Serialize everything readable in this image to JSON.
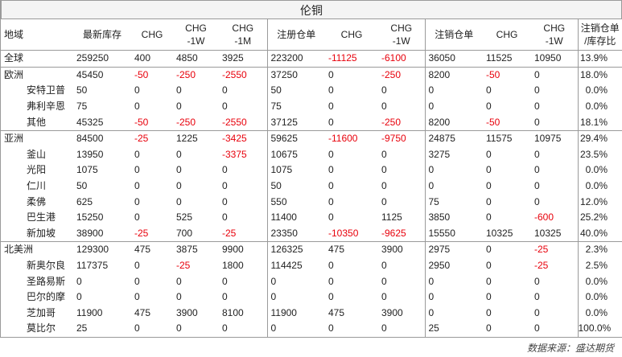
{
  "title": "伦铜",
  "headers": [
    "地域",
    "最新库存",
    "CHG",
    "CHG\n-1W",
    "CHG\n-1M",
    "注册仓单",
    "CHG",
    "CHG\n-1W",
    "注销仓单",
    "CHG",
    "CHG\n-1W",
    "注销仓单\n/库存比"
  ],
  "rows": [
    {
      "region": "全球",
      "sub": false,
      "group_start": true,
      "cells": [
        "259250",
        "400",
        "4850",
        "3925",
        "223200",
        "-11125",
        "-6100",
        "36050",
        "11525",
        "10950",
        "13.9%"
      ]
    },
    {
      "region": "欧洲",
      "sub": false,
      "group_start": true,
      "cells": [
        "45450",
        "-50",
        "-250",
        "-2550",
        "37250",
        "0",
        "-250",
        "8200",
        "-50",
        "0",
        "18.0%"
      ]
    },
    {
      "region": "安特卫普",
      "sub": true,
      "group_start": false,
      "cells": [
        "50",
        "0",
        "0",
        "0",
        "50",
        "0",
        "0",
        "0",
        "0",
        "0",
        "0.0%"
      ]
    },
    {
      "region": "弗利辛恩",
      "sub": true,
      "group_start": false,
      "cells": [
        "75",
        "0",
        "0",
        "0",
        "75",
        "0",
        "0",
        "0",
        "0",
        "0",
        "0.0%"
      ]
    },
    {
      "region": "其他",
      "sub": true,
      "group_start": false,
      "cells": [
        "45325",
        "-50",
        "-250",
        "-2550",
        "37125",
        "0",
        "-250",
        "8200",
        "-50",
        "0",
        "18.1%"
      ]
    },
    {
      "region": "亚洲",
      "sub": false,
      "group_start": true,
      "cells": [
        "84500",
        "-25",
        "1225",
        "-3425",
        "59625",
        "-11600",
        "-9750",
        "24875",
        "11575",
        "10975",
        "29.4%"
      ]
    },
    {
      "region": "釜山",
      "sub": true,
      "group_start": false,
      "cells": [
        "13950",
        "0",
        "0",
        "-3375",
        "10675",
        "0",
        "0",
        "3275",
        "0",
        "0",
        "23.5%"
      ]
    },
    {
      "region": "光阳",
      "sub": true,
      "group_start": false,
      "cells": [
        "1075",
        "0",
        "0",
        "0",
        "1075",
        "0",
        "0",
        "0",
        "0",
        "0",
        "0.0%"
      ]
    },
    {
      "region": "仁川",
      "sub": true,
      "group_start": false,
      "cells": [
        "50",
        "0",
        "0",
        "0",
        "50",
        "0",
        "0",
        "0",
        "0",
        "0",
        "0.0%"
      ]
    },
    {
      "region": "柔佛",
      "sub": true,
      "group_start": false,
      "cells": [
        "625",
        "0",
        "0",
        "0",
        "550",
        "0",
        "0",
        "75",
        "0",
        "0",
        "12.0%"
      ]
    },
    {
      "region": "巴生港",
      "sub": true,
      "group_start": false,
      "cells": [
        "15250",
        "0",
        "525",
        "0",
        "11400",
        "0",
        "1125",
        "3850",
        "0",
        "-600",
        "25.2%"
      ]
    },
    {
      "region": "新加坡",
      "sub": true,
      "group_start": false,
      "cells": [
        "38900",
        "-25",
        "700",
        "-25",
        "23350",
        "-10350",
        "-9625",
        "15550",
        "10325",
        "10325",
        "40.0%"
      ]
    },
    {
      "region": "北美洲",
      "sub": false,
      "group_start": true,
      "cells": [
        "129300",
        "475",
        "3875",
        "9900",
        "126325",
        "475",
        "3900",
        "2975",
        "0",
        "-25",
        "2.3%"
      ]
    },
    {
      "region": "新奥尔良",
      "sub": true,
      "group_start": false,
      "cells": [
        "117375",
        "0",
        "-25",
        "1800",
        "114425",
        "0",
        "0",
        "2950",
        "0",
        "-25",
        "2.5%"
      ]
    },
    {
      "region": "圣路易斯",
      "sub": true,
      "group_start": false,
      "cells": [
        "0",
        "0",
        "0",
        "0",
        "0",
        "0",
        "0",
        "0",
        "0",
        "0",
        "0.0%"
      ]
    },
    {
      "region": "巴尔的摩",
      "sub": true,
      "group_start": false,
      "cells": [
        "0",
        "0",
        "0",
        "0",
        "0",
        "0",
        "0",
        "0",
        "0",
        "0",
        "0.0%"
      ]
    },
    {
      "region": "芝加哥",
      "sub": true,
      "group_start": false,
      "cells": [
        "11900",
        "475",
        "3900",
        "8100",
        "11900",
        "475",
        "3900",
        "0",
        "0",
        "0",
        "0.0%"
      ]
    },
    {
      "region": "莫比尔",
      "sub": true,
      "group_start": false,
      "cells": [
        "25",
        "0",
        "0",
        "0",
        "0",
        "0",
        "0",
        "25",
        "0",
        "0",
        "100.0%"
      ]
    }
  ],
  "negative_color": "#e8000b",
  "footer": "数据来源：盛达期货"
}
